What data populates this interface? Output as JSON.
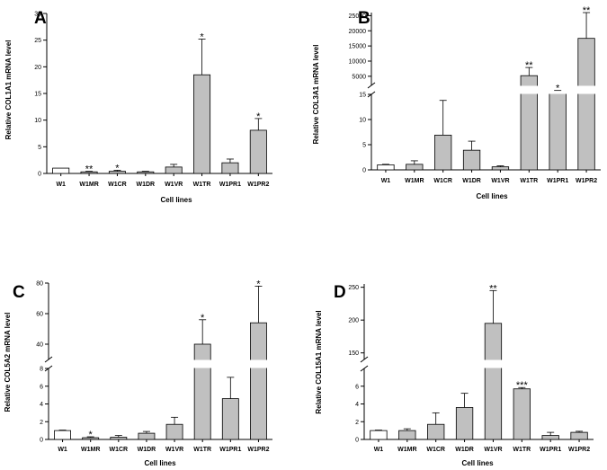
{
  "chart_data": [
    {
      "id": "A",
      "type": "bar",
      "letter": "A",
      "ylabel": "Relative COL1A1 mRNA level",
      "xlabel": "Cell lines",
      "categories": [
        "W1",
        "W1MR",
        "W1CR",
        "W1DR",
        "W1VR",
        "W1TR",
        "W1PR1",
        "W1PR2"
      ],
      "values": [
        1,
        0.3,
        0.4,
        0.3,
        1.2,
        18.5,
        2.0,
        8.1
      ],
      "errors": [
        0,
        0.1,
        0.2,
        0.1,
        0.5,
        6.7,
        0.7,
        2.2
      ],
      "significance": [
        "",
        "**",
        "*",
        "",
        "",
        "*",
        "",
        "*"
      ],
      "ylim": [
        0,
        30
      ],
      "yticks": [
        0,
        5,
        10,
        15,
        20,
        25,
        30
      ],
      "colors": [
        "#ffffff",
        "#c0c0c0",
        "#c0c0c0",
        "#c0c0c0",
        "#c0c0c0",
        "#c0c0c0",
        "#c0c0c0",
        "#c0c0c0"
      ]
    },
    {
      "id": "B",
      "type": "bar",
      "letter": "B",
      "ylabel": "Relative COL3A1 mRNA level",
      "xlabel": "Cell lines",
      "categories": [
        "W1",
        "W1MR",
        "W1CR",
        "W1DR",
        "W1VR",
        "W1TR",
        "W1PR1",
        "W1PR2"
      ],
      "values": [
        1,
        1.1,
        6.9,
        3.9,
        0.6,
        5200,
        300,
        17500
      ],
      "errors": [
        0.1,
        0.7,
        6.9,
        1.8,
        0.2,
        2700,
        20,
        8500
      ],
      "significance": [
        "",
        "",
        "",
        "",
        "",
        "**",
        "*",
        "**"
      ],
      "axis_break": {
        "lower": [
          0,
          15
        ],
        "lower_ticks": [
          0,
          5,
          10,
          15
        ],
        "upper": [
          2000,
          26000
        ],
        "upper_ticks": [
          5000,
          10000,
          15000,
          20000,
          25000
        ]
      },
      "colors": [
        "#ffffff",
        "#c0c0c0",
        "#c0c0c0",
        "#c0c0c0",
        "#c0c0c0",
        "#c0c0c0",
        "#c0c0c0",
        "#c0c0c0"
      ]
    },
    {
      "id": "C",
      "type": "bar",
      "letter": "C",
      "ylabel": "Relative COL5A2 mRNA level",
      "xlabel": "Cell lines",
      "categories": [
        "W1",
        "W1MR",
        "W1CR",
        "W1DR",
        "W1VR",
        "W1TR",
        "W1PR1",
        "W1PR2"
      ],
      "values": [
        1,
        0.2,
        0.25,
        0.7,
        1.7,
        40,
        4.6,
        54
      ],
      "errors": [
        0.05,
        0.1,
        0.2,
        0.2,
        0.8,
        16,
        2.4,
        24
      ],
      "significance": [
        "",
        "*",
        "",
        "",
        "",
        "*",
        "",
        "*"
      ],
      "axis_break": {
        "lower": [
          0,
          8
        ],
        "lower_ticks": [
          0,
          2,
          4,
          6,
          8
        ],
        "upper": [
          30,
          80
        ],
        "upper_ticks": [
          40,
          60,
          80
        ]
      },
      "colors": [
        "#ffffff",
        "#c0c0c0",
        "#c0c0c0",
        "#c0c0c0",
        "#c0c0c0",
        "#c0c0c0",
        "#c0c0c0",
        "#c0c0c0"
      ]
    },
    {
      "id": "D",
      "type": "bar",
      "letter": "D",
      "ylabel": "Relative COL15A1 mRNA level",
      "xlabel": "Cell lines",
      "categories": [
        "W1",
        "W1MR",
        "W1CR",
        "W1DR",
        "W1VR",
        "W1TR",
        "W1PR1",
        "W1PR2"
      ],
      "values": [
        1,
        1,
        1.7,
        3.6,
        195,
        5.7,
        0.45,
        0.8
      ],
      "errors": [
        0.05,
        0.2,
        1.3,
        1.6,
        50,
        0.15,
        0.35,
        0.12
      ],
      "significance": [
        "",
        "",
        "",
        "",
        "**",
        "***",
        "",
        ""
      ],
      "axis_break": {
        "lower": [
          0,
          8
        ],
        "lower_ticks": [
          0,
          2,
          4,
          6
        ],
        "upper": [
          140,
          255
        ],
        "upper_ticks": [
          150,
          200,
          250
        ]
      },
      "colors": [
        "#ffffff",
        "#c0c0c0",
        "#c0c0c0",
        "#c0c0c0",
        "#c0c0c0",
        "#c0c0c0",
        "#c0c0c0",
        "#c0c0c0"
      ]
    }
  ]
}
